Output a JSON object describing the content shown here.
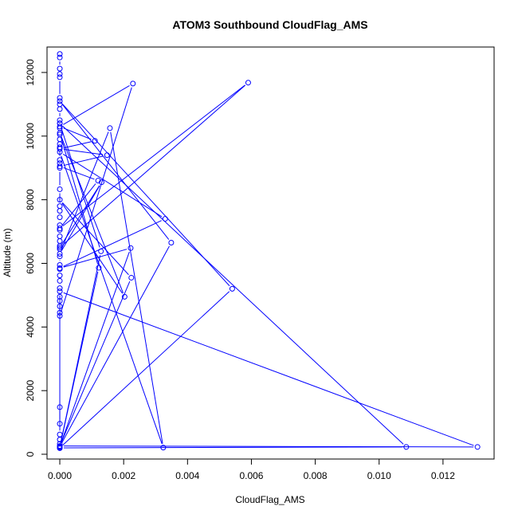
{
  "chart_data": {
    "type": "line",
    "title": "ATOM3 Southbound CloudFlag_AMS",
    "xlabel": "CloudFlag_AMS",
    "ylabel": "Altitude (m)",
    "xlim": [
      -0.0004,
      0.0136
    ],
    "ylim": [
      -150,
      12800
    ],
    "xticks": [
      {
        "value": 0,
        "label": "0.000"
      },
      {
        "value": 0.002,
        "label": "0.002"
      },
      {
        "value": 0.004,
        "label": "0.004"
      },
      {
        "value": 0.006,
        "label": "0.006"
      },
      {
        "value": 0.008,
        "label": "0.008"
      },
      {
        "value": 0.01,
        "label": "0.010"
      },
      {
        "value": 0.012,
        "label": "0.012"
      }
    ],
    "yticks": [
      {
        "value": 0,
        "label": "0"
      },
      {
        "value": 2000,
        "label": "2000"
      },
      {
        "value": 4000,
        "label": "4000"
      },
      {
        "value": 6000,
        "label": "6000"
      },
      {
        "value": 8000,
        "label": "8000"
      },
      {
        "value": 10000,
        "label": "10000"
      },
      {
        "value": 12000,
        "label": "12000"
      }
    ],
    "grid": false,
    "series": [
      {
        "color": "#0000ff",
        "marker": "open-circle",
        "points": [
          [
            0,
            12580
          ],
          [
            0,
            12470
          ],
          [
            0,
            12120
          ],
          [
            0,
            11950
          ],
          [
            0,
            11850
          ],
          [
            0,
            11200
          ],
          [
            0,
            11000
          ],
          [
            0,
            10850
          ],
          [
            0,
            10500
          ],
          [
            0,
            10400
          ],
          [
            0,
            10250
          ],
          [
            0,
            10050
          ],
          [
            0,
            9900
          ],
          [
            0,
            9750
          ],
          [
            0,
            9650
          ],
          [
            0,
            9250
          ],
          [
            0,
            9150
          ],
          [
            0,
            9000
          ],
          [
            0,
            8330
          ],
          [
            0,
            7800
          ],
          [
            0,
            7650
          ],
          [
            0,
            7450
          ],
          [
            0,
            7200
          ],
          [
            0,
            7050
          ],
          [
            0,
            6850
          ],
          [
            0,
            6700
          ],
          [
            0,
            6550
          ],
          [
            0,
            6450
          ],
          [
            0,
            6220
          ],
          [
            0,
            5950
          ],
          [
            0,
            5820
          ],
          [
            0,
            5620
          ],
          [
            0,
            5450
          ],
          [
            0,
            5220
          ],
          [
            0,
            4950
          ],
          [
            0,
            4820
          ],
          [
            0,
            4650
          ],
          [
            0,
            4450
          ],
          [
            0,
            4350
          ],
          [
            0.00229,
            11650
          ],
          [
            0,
            10300
          ],
          [
            0.0011,
            9850
          ],
          [
            0,
            9600
          ],
          [
            0.00148,
            9400
          ],
          [
            0,
            9050
          ],
          [
            0.0012,
            8600
          ],
          [
            0,
            7100
          ],
          [
            0.0059,
            11680
          ],
          [
            0,
            6500
          ],
          [
            0.00131,
            8550
          ],
          [
            0,
            6300
          ],
          [
            0.00157,
            10250
          ],
          [
            0.00324,
            210
          ],
          [
            0,
            9500
          ],
          [
            0.0033,
            7400
          ],
          [
            0,
            5850
          ],
          [
            0.00222,
            6480
          ],
          [
            0,
            240
          ],
          [
            0.00349,
            6650
          ],
          [
            0,
            11100
          ],
          [
            0.0054,
            5200
          ],
          [
            0,
            200
          ],
          [
            0.01085,
            230
          ],
          [
            0,
            10400
          ],
          [
            0.00129,
            6380
          ],
          [
            0,
            220
          ],
          [
            0.00122,
            5860
          ],
          [
            0,
            10100
          ],
          [
            0.00203,
            4950
          ],
          [
            0,
            8000
          ],
          [
            0.00224,
            5550
          ],
          [
            0,
            260
          ],
          [
            0.01308,
            230
          ],
          [
            0,
            5120
          ],
          [
            0,
            960
          ],
          [
            0,
            1480
          ],
          [
            0,
            620
          ],
          [
            0,
            460
          ],
          [
            0,
            330
          ],
          [
            0,
            250
          ],
          [
            0,
            190
          ]
        ]
      }
    ]
  }
}
